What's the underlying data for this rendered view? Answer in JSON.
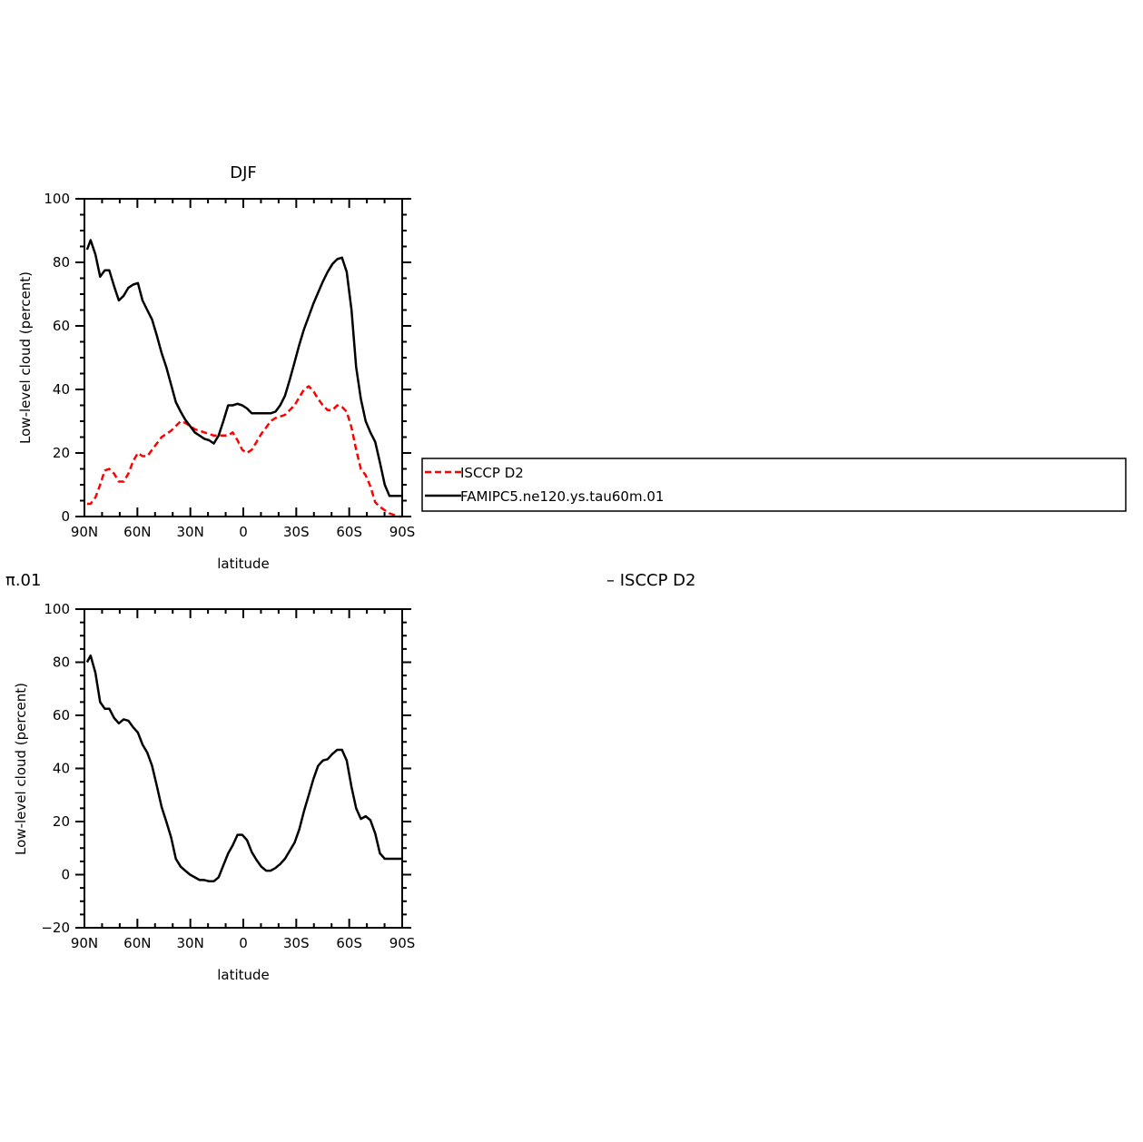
{
  "colors": {
    "model": "#000000",
    "obs": "#ff0000",
    "frame": "#000000"
  },
  "top_title": "DJF",
  "bottom_title_left": "π.01",
  "bottom_title_right": "– ISCCP  D2",
  "legend": {
    "items": [
      {
        "label": "ISCCP  D2",
        "color": "#ff0000",
        "dash": true
      },
      {
        "label": "FAMIPC5.ne120.ys.tau60m.01",
        "color": "#000000",
        "dash": false
      }
    ]
  },
  "chart_data": [
    {
      "type": "line",
      "title": "DJF",
      "xlabel": "latitude",
      "ylabel": "Low-level cloud (percent)",
      "xlim": [
        90,
        -90
      ],
      "ylim": [
        0,
        100
      ],
      "xticks": [
        90,
        60,
        30,
        0,
        -30,
        -60,
        -90
      ],
      "xtick_labels": [
        "90N",
        "60N",
        "30N",
        "0",
        "30S",
        "60S",
        "90S"
      ],
      "yticks": [
        0,
        20,
        40,
        60,
        80,
        100
      ],
      "ytick_labels": [
        "0",
        "20",
        "40",
        "60",
        "80",
        "100"
      ],
      "legend_position": "right",
      "series": [
        {
          "name": "ISCCP  D2",
          "color": "#ff0000",
          "dash": true,
          "x": [
            88.5,
            86.5,
            83.8,
            81.1,
            78.5,
            75.9,
            73.2,
            70.5,
            67.8,
            65.1,
            62.4,
            59.7,
            57.1,
            54.4,
            51.7,
            49.0,
            46.3,
            43.6,
            40.9,
            38.2,
            35.5,
            32.9,
            30.2,
            27.5,
            24.8,
            22.1,
            19.4,
            16.7,
            14.0,
            11.3,
            8.6,
            6.0,
            3.3,
            0.6,
            -2.1,
            -4.8,
            -7.5,
            -10.2,
            -12.9,
            -15.5,
            -18.2,
            -20.9,
            -23.6,
            -26.3,
            -29.0,
            -31.7,
            -34.4,
            -37.1,
            -39.7,
            -42.4,
            -45.1,
            -47.8,
            -50.5,
            -53.2,
            -55.9,
            -58.6,
            -61.3,
            -63.9,
            -66.6,
            -69.3,
            -72.0,
            -74.7,
            -77.4,
            -80.1,
            -82.8,
            -85.5,
            -88.1,
            -89.5
          ],
          "y": [
            4.0,
            4.0,
            6.0,
            10.0,
            14.5,
            15.0,
            13.5,
            11.0,
            11.0,
            13.5,
            17.5,
            20.0,
            19.0,
            19.0,
            21.0,
            23.0,
            25.0,
            26.0,
            27.0,
            28.5,
            30.0,
            29.5,
            28.5,
            27.5,
            27.0,
            26.5,
            26.0,
            25.5,
            25.5,
            25.5,
            25.5,
            26.5,
            24.0,
            21.0,
            20.0,
            21.0,
            23.5,
            26.0,
            28.0,
            30.0,
            31.0,
            31.5,
            32.0,
            33.5,
            35.0,
            37.5,
            40.0,
            41.0,
            39.5,
            37.0,
            35.0,
            33.5,
            33.5,
            35.0,
            34.5,
            33.0,
            28.0,
            21.0,
            15.0,
            13.0,
            9.5,
            4.5,
            3.0,
            2.0,
            1.0,
            0.5,
            0.0,
            0.0
          ]
        },
        {
          "name": "FAMIPC5.ne120.ys.tau60m.01",
          "color": "#000000",
          "dash": false,
          "x": [
            88.5,
            86.5,
            83.8,
            81.1,
            78.5,
            75.9,
            73.2,
            70.5,
            67.8,
            65.1,
            62.4,
            59.7,
            57.1,
            54.4,
            51.7,
            49.0,
            46.3,
            43.6,
            40.9,
            38.2,
            35.5,
            32.9,
            30.2,
            27.5,
            24.8,
            22.1,
            19.4,
            16.7,
            14.0,
            11.3,
            8.6,
            6.0,
            3.3,
            0.6,
            -2.1,
            -4.8,
            -7.5,
            -10.2,
            -12.9,
            -15.5,
            -18.2,
            -20.9,
            -23.6,
            -26.3,
            -29.0,
            -31.7,
            -34.4,
            -37.1,
            -39.7,
            -42.4,
            -45.1,
            -47.8,
            -50.5,
            -53.2,
            -55.9,
            -58.6,
            -61.3,
            -63.9,
            -66.6,
            -69.3,
            -72.0,
            -74.7,
            -77.4,
            -80.1,
            -82.8,
            -85.5,
            -88.1,
            -89.5
          ],
          "y": [
            84.0,
            87.0,
            82.5,
            75.5,
            77.5,
            77.5,
            72.5,
            68.0,
            69.5,
            72.0,
            73.0,
            73.5,
            68.0,
            65.0,
            62.0,
            57.0,
            51.5,
            47.0,
            41.5,
            36.0,
            33.0,
            30.5,
            28.5,
            26.5,
            25.5,
            24.5,
            24.0,
            23.0,
            25.5,
            30.0,
            35.0,
            35.0,
            35.5,
            35.0,
            34.0,
            32.5,
            32.5,
            32.5,
            32.5,
            32.5,
            33.0,
            35.0,
            38.0,
            43.0,
            48.5,
            54.0,
            59.0,
            63.0,
            67.0,
            70.5,
            74.0,
            77.0,
            79.5,
            81.0,
            81.5,
            77.0,
            65.0,
            47.0,
            37.0,
            30.0,
            26.5,
            23.5,
            17.0,
            10.0,
            6.5,
            6.5,
            6.5,
            6.5
          ]
        }
      ]
    },
    {
      "type": "line",
      "title": "",
      "xlabel": "latitude",
      "ylabel": "Low-level cloud (percent)",
      "xlim": [
        90,
        -90
      ],
      "ylim": [
        -20,
        100
      ],
      "xticks": [
        90,
        60,
        30,
        0,
        -30,
        -60,
        -90
      ],
      "xtick_labels": [
        "90N",
        "60N",
        "30N",
        "0",
        "30S",
        "60S",
        "90S"
      ],
      "yticks": [
        -20,
        0,
        20,
        40,
        60,
        80,
        100
      ],
      "ytick_labels": [
        "−20",
        "0",
        "20",
        "40",
        "60",
        "80",
        "100"
      ],
      "series": [
        {
          "color": "#000000",
          "dash": false,
          "x": [
            88.5,
            86.5,
            83.8,
            81.1,
            78.5,
            75.9,
            73.2,
            70.5,
            67.8,
            65.1,
            62.4,
            59.7,
            57.1,
            54.4,
            51.7,
            49.0,
            46.3,
            43.6,
            40.9,
            38.2,
            35.5,
            32.9,
            30.2,
            27.5,
            24.8,
            22.1,
            19.4,
            16.7,
            14.0,
            11.3,
            8.6,
            6.0,
            3.3,
            0.6,
            -2.1,
            -4.8,
            -7.5,
            -10.2,
            -12.9,
            -15.5,
            -18.2,
            -20.9,
            -23.6,
            -26.3,
            -29.0,
            -31.7,
            -34.4,
            -37.1,
            -39.7,
            -42.4,
            -45.1,
            -47.8,
            -50.5,
            -53.2,
            -55.9,
            -58.6,
            -61.3,
            -63.9,
            -66.6,
            -69.3,
            -72.0,
            -74.7,
            -77.4,
            -80.1,
            -82.8,
            -85.5,
            -88.1,
            -89.5
          ],
          "y": [
            80.0,
            82.5,
            76.0,
            65.0,
            62.5,
            62.5,
            59.0,
            57.0,
            58.5,
            58.0,
            55.5,
            53.5,
            49.0,
            46.0,
            41.0,
            33.5,
            25.5,
            20.0,
            14.0,
            6.0,
            3.0,
            1.5,
            0.0,
            -1.0,
            -2.0,
            -2.0,
            -2.5,
            -2.5,
            -1.0,
            3.5,
            8.0,
            11.0,
            15.0,
            15.0,
            13.0,
            8.5,
            5.5,
            3.0,
            1.5,
            1.5,
            2.5,
            4.0,
            6.0,
            9.0,
            12.0,
            17.0,
            24.0,
            30.0,
            36.0,
            41.0,
            43.0,
            43.5,
            45.5,
            47.0,
            47.0,
            43.0,
            33.0,
            25.0,
            21.0,
            22.0,
            20.5,
            15.5,
            8.0,
            6.0,
            6.0,
            6.0,
            6.0,
            6.0
          ]
        }
      ]
    }
  ]
}
